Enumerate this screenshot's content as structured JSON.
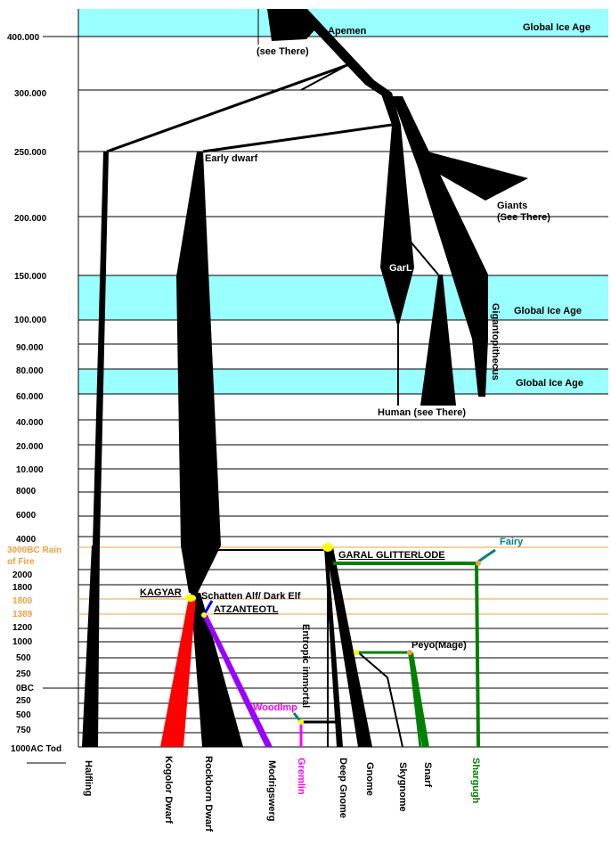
{
  "ice_ages": [
    "Global Ice Age",
    "Global Ice Age",
    "Global Ice Age"
  ],
  "ticks": [
    "400.000",
    "300.000",
    "250.000",
    "200.000",
    "150.000",
    "100.000",
    "90.000",
    "80.000",
    "60.000",
    "40.000",
    "20.000",
    "10.000",
    "8000",
    "6000",
    "4000",
    "3000BC Rain",
    "of Fire",
    "2000",
    "1800",
    "1800",
    "1389",
    "1200",
    "1000",
    "500",
    "250",
    "0BC",
    "250",
    "500",
    "750",
    "1000AC Tod"
  ],
  "labels": {
    "apemen": "Apemen",
    "see_there": "(see There)",
    "early_dwarf": "Early dwarf",
    "giants": "Giants",
    "giants_see": "(See There)",
    "garl": "GarL",
    "gigantopithecus": "Gigantopithecus",
    "human": "Human (see There)",
    "garal": "GARAL GLITTERLODE",
    "fairy": "Fairy",
    "kagyar": "KAGYAR",
    "schatten": "Schatten Alf/ Dark Elf",
    "atzanteotl": "ATZANTEOTL",
    "peyo": "Peyo(Mage)",
    "entropic": "Entropic immortal",
    "woodimp": "WoodImp"
  },
  "lineages": [
    "Halfling",
    "Kogolor Dwarf",
    "Rockborn Dwarf",
    "Modrigswerg",
    "Gremlin",
    "Deep Gnome",
    "Gnome",
    "Skygnome",
    "Snarf",
    "Shargugh"
  ],
  "colors": {
    "ice": "#99ffff",
    "black": "#000000",
    "red": "#ff0000",
    "purple": "#9900ff",
    "magenta": "#ff00ff",
    "green": "#008000",
    "teal": "#008080",
    "blue": "#0000ff",
    "orange": "#f0a040",
    "yellow": "#ffff00"
  }
}
